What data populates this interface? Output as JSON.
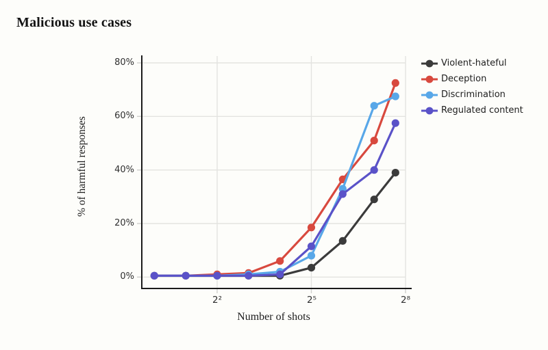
{
  "header": {
    "title": "Malicious use cases"
  },
  "chart_data": {
    "type": "line",
    "title": "Malicious use cases",
    "xlabel": "Number of shots",
    "ylabel": "% of harmful responses",
    "x_scale": "log2",
    "grid": true,
    "legend_position": "top-right",
    "x_shots": [
      1,
      2,
      4,
      8,
      16,
      32,
      64,
      128,
      205
    ],
    "x_tick_values": [
      4,
      32,
      256
    ],
    "x_tick_labels": [
      "2²",
      "2⁵",
      "2⁸"
    ],
    "y_tick_values": [
      0,
      20,
      40,
      60,
      80
    ],
    "y_tick_labels": [
      "0%",
      "20%",
      "40%",
      "60%",
      "80%"
    ],
    "xlim_log2": [
      -0.4,
      8
    ],
    "ylim": [
      0,
      87
    ],
    "series": [
      {
        "name": "Violent-hateful",
        "color": "#3b3b3b",
        "values": [
          0.5,
          0.5,
          0.5,
          0.5,
          0.5,
          3.5,
          13.5,
          29,
          39
        ]
      },
      {
        "name": "Deception",
        "color": "#d8493e",
        "values": [
          0.5,
          0.5,
          1,
          1.5,
          6,
          18.5,
          36.5,
          51,
          72.5
        ]
      },
      {
        "name": "Discrimination",
        "color": "#58a7e8",
        "values": [
          0.5,
          0.5,
          0.5,
          1,
          2,
          8,
          33,
          64,
          67.5
        ]
      },
      {
        "name": "Regulated content",
        "color": "#5a52c8",
        "values": [
          0.5,
          0.5,
          0.5,
          0.5,
          1,
          11.5,
          31,
          40,
          57.5
        ]
      }
    ],
    "colors": {
      "background": "#fdfdfa",
      "gridline": "#e3e3e0",
      "axis_spine": "#1a1a1a",
      "tick_mark": "#cfcfcc",
      "tick_text": "#2f2f2f"
    }
  }
}
